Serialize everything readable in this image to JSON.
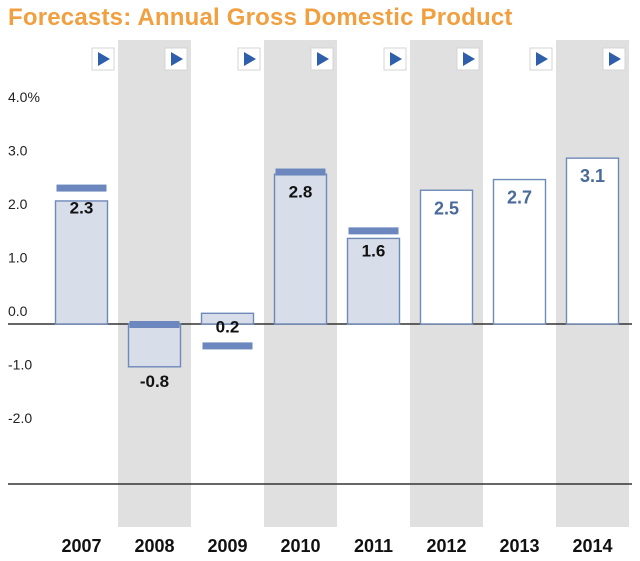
{
  "colors": {
    "title": "#f0a040",
    "band": "#e0e0e0",
    "actual_fill": "#d7dde9",
    "bar_stroke": "#6f89b8",
    "previous_marker": "#6c87bd",
    "forecast_fill": "#ffffff",
    "forecast_text": "#4a6a9a",
    "play_button": "#2f5eaa",
    "axis": "#333333"
  },
  "chart_data": {
    "type": "bar",
    "title": "Forecasts: Annual Gross Domestic Product",
    "categories": [
      "2007",
      "2008",
      "2009",
      "2010",
      "2011",
      "2012",
      "2013",
      "2014"
    ],
    "values": [
      2.3,
      -0.8,
      0.2,
      2.8,
      1.6,
      2.5,
      2.7,
      3.1
    ],
    "value_labels": [
      "2.3",
      "-0.8",
      "0.2",
      "2.8",
      "1.6",
      "2.5",
      "2.7",
      "3.1"
    ],
    "bar_kind": [
      "actual",
      "actual",
      "actual",
      "actual",
      "actual",
      "forecast",
      "forecast",
      "forecast"
    ],
    "previous_estimate": [
      2.55,
      0.0,
      -0.4,
      2.85,
      1.75,
      null,
      null,
      null
    ],
    "y_ticks": [
      4.0,
      3.0,
      2.0,
      1.0,
      0.0,
      -1.0,
      -2.0
    ],
    "y_tick_labels": [
      "4.0%",
      "3.0",
      "2.0",
      "1.0",
      "0.0",
      "-1.0",
      "-2.0"
    ],
    "ylim": [
      -3.0,
      4.0
    ],
    "xlabel": "",
    "ylabel": "",
    "grid": false,
    "alternating_bands": true
  },
  "controls": {
    "play_icon": "play-icon",
    "play_count": 8
  }
}
